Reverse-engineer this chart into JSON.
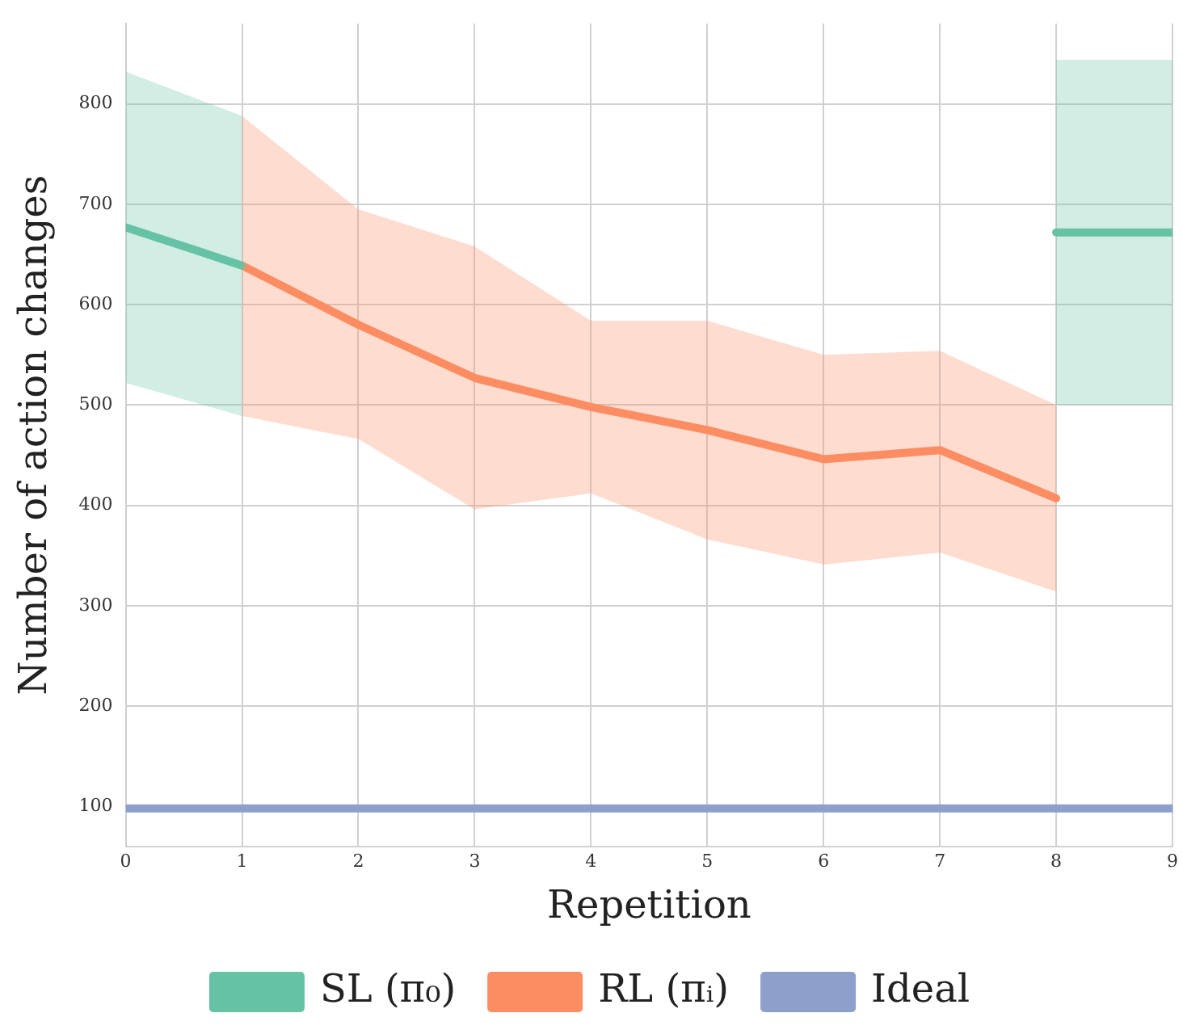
{
  "chart_data": {
    "type": "line",
    "xlabel": "Repetition",
    "ylabel": "Number of action changes",
    "xlim": [
      0,
      9
    ],
    "xticks": [
      0,
      1,
      2,
      3,
      4,
      5,
      6,
      7,
      8,
      9
    ],
    "ylim": [
      60,
      880
    ],
    "yticks": [
      100,
      200,
      300,
      400,
      500,
      600,
      700,
      800
    ],
    "grid": true,
    "legend": "bottom",
    "series": [
      {
        "name": "SL (π₀)",
        "color": "#66c2a5",
        "x": [
          0,
          1
        ],
        "values": [
          677,
          639
        ],
        "lower": [
          522,
          489
        ],
        "upper": [
          832,
          788
        ]
      },
      {
        "name": "RL (πᵢ)",
        "color": "#fc8d62",
        "x": [
          1,
          2,
          3,
          4,
          5,
          6,
          7,
          8
        ],
        "values": [
          639,
          580,
          527,
          498,
          475,
          446,
          455,
          407
        ],
        "lower": [
          489,
          466,
          396,
          412,
          366,
          341,
          353,
          314
        ],
        "upper": [
          788,
          695,
          658,
          584,
          584,
          550,
          554,
          500
        ]
      },
      {
        "name": "Ideal",
        "color": "#8da0cb",
        "x": [
          0,
          9
        ],
        "values": [
          98,
          98
        ]
      },
      {
        "color": "#66c2a5",
        "x": [
          8,
          9
        ],
        "values": [
          672,
          672
        ],
        "lower": [
          500,
          500
        ],
        "upper": [
          844,
          844
        ]
      }
    ]
  }
}
